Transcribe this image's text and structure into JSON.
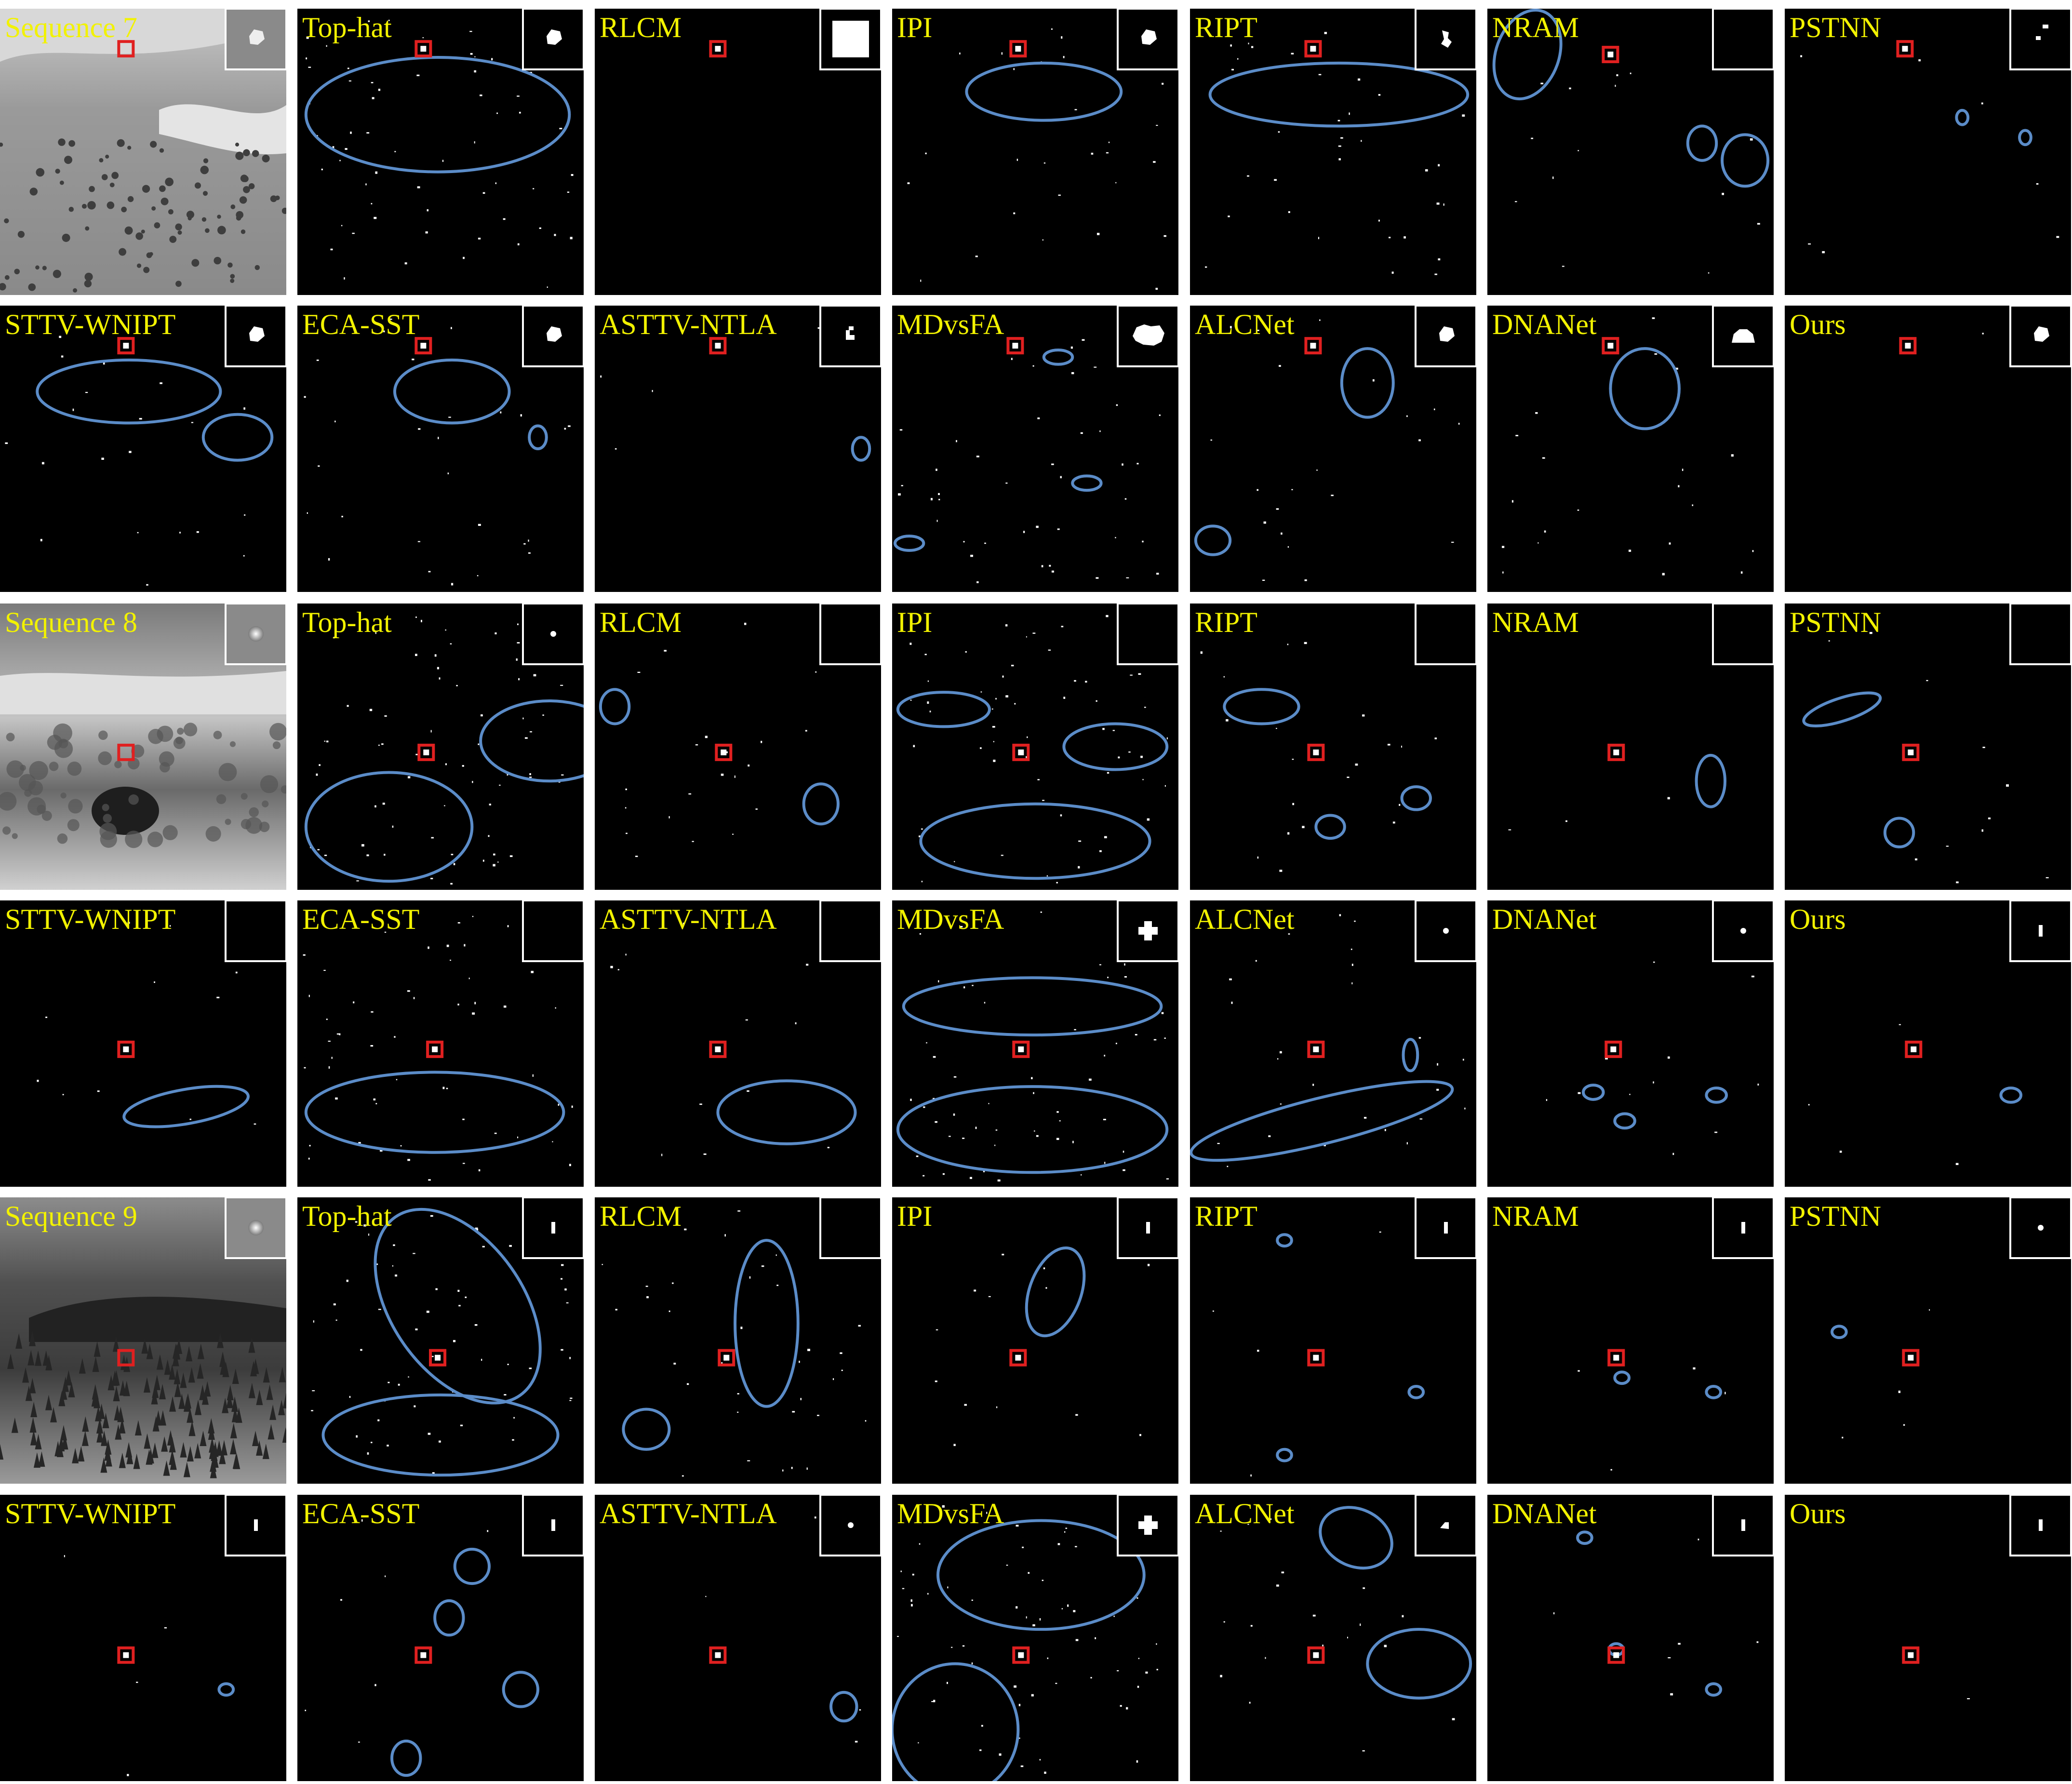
{
  "figure": {
    "rows": [
      {
        "kind": "image",
        "sequence": "Sequence 7",
        "labels": [
          "Sequence 7",
          "Top-hat",
          "RLCM",
          "IPI",
          "RIPT",
          "NRAM",
          "PSTNN"
        ],
        "insets": [
          "blob",
          "blob",
          "square",
          "blob",
          "blob2",
          "none",
          "dots"
        ]
      },
      {
        "kind": "result",
        "labels": [
          "STTV-WNIPT",
          "ECA-SST",
          "ASTTV-NTLA",
          "MDvsFA",
          "ALCNet",
          "DNANet",
          "Ours"
        ],
        "insets": [
          "blob",
          "blob",
          "hook",
          "cloud",
          "blob",
          "dome",
          "blob"
        ]
      },
      {
        "kind": "image",
        "sequence": "Sequence 8",
        "labels": [
          "Sequence 8",
          "Top-hat",
          "RLCM",
          "IPI",
          "RIPT",
          "NRAM",
          "PSTNN"
        ],
        "insets": [
          "gray",
          "dot",
          "none",
          "none",
          "none",
          "none",
          "none"
        ]
      },
      {
        "kind": "result",
        "labels": [
          "STTV-WNIPT",
          "ECA-SST",
          "ASTTV-NTLA",
          "MDvsFA",
          "ALCNet",
          "DNANet",
          "Ours"
        ],
        "insets": [
          "none",
          "none",
          "none",
          "cross",
          "dot",
          "dot",
          "bar"
        ]
      },
      {
        "kind": "image",
        "sequence": "Sequence 9",
        "labels": [
          "Sequence 9",
          "Top-hat",
          "RLCM",
          "IPI",
          "RIPT",
          "NRAM",
          "PSTNN"
        ],
        "insets": [
          "gray",
          "bar",
          "none",
          "bar",
          "bar",
          "bar",
          "dot"
        ]
      },
      {
        "kind": "result",
        "labels": [
          "STTV-WNIPT",
          "ECA-SST",
          "ASTTV-NTLA",
          "MDvsFA",
          "ALCNet",
          "DNANet",
          "Ours"
        ],
        "insets": [
          "bar",
          "bar",
          "dot",
          "cross",
          "bar2",
          "bar",
          "bar"
        ]
      }
    ],
    "colors": {
      "label": "#f2f200",
      "target_box": "#e02020",
      "false_alarm_circle": "#5b8cc8",
      "inset_border": "#ffffff",
      "panel_background": "#000000"
    }
  }
}
